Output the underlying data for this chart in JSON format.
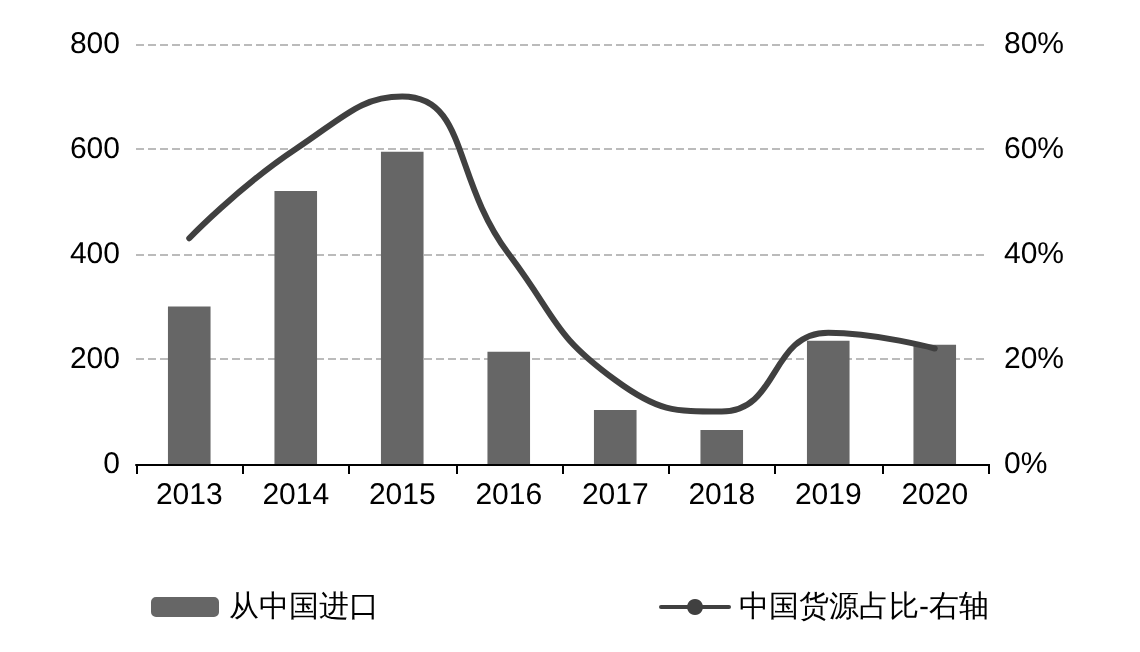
{
  "chart_data": {
    "type": "bar",
    "categories": [
      "2013",
      "2014",
      "2015",
      "2016",
      "2017",
      "2018",
      "2019",
      "2020"
    ],
    "series": [
      {
        "name": "从中国进口",
        "color": "#666666",
        "values": [
          300,
          520,
          595,
          214,
          103,
          65,
          235,
          227
        ]
      },
      {
        "name": "中国货源占比-右轴",
        "type": "line",
        "axis": "y2",
        "color": "#404040",
        "values": [
          43,
          60,
          70,
          40,
          16,
          10,
          25,
          22
        ]
      }
    ],
    "ylim": [
      0,
      800
    ],
    "yticks": [
      0,
      200,
      400,
      600,
      800
    ],
    "y2lim": [
      0,
      80
    ],
    "y2ticks": [
      {
        "value": 0,
        "label": "0%"
      },
      {
        "value": 20,
        "label": "20%"
      },
      {
        "value": 40,
        "label": "40%"
      },
      {
        "value": 60,
        "label": "60%"
      },
      {
        "value": 80,
        "label": "80%"
      }
    ],
    "grid": "y",
    "legend": "bottom",
    "marker": "none",
    "line_style": "solid"
  }
}
